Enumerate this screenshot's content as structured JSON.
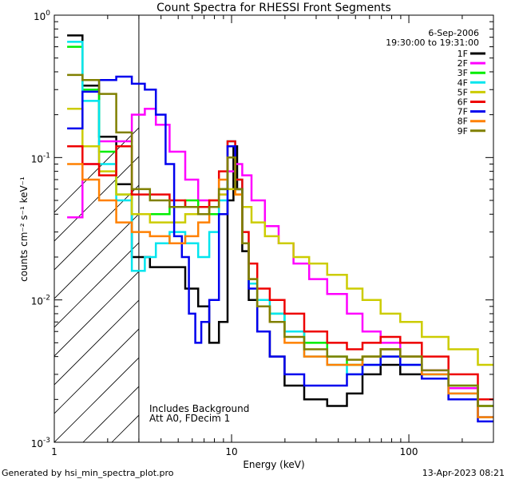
{
  "chart_data": {
    "type": "line",
    "style": "step",
    "title": "Count Spectra for RHESSI Front Segments",
    "xlabel": "Energy (keV)",
    "ylabel": "counts cm⁻² s⁻¹ keV⁻¹",
    "xscale": "log",
    "yscale": "log",
    "xlim": [
      1,
      300
    ],
    "ylim": [
      0.001,
      1
    ],
    "x_ticks": [
      {
        "value": 1,
        "label": "1"
      },
      {
        "value": 10,
        "label": "10"
      },
      {
        "value": 100,
        "label": "100"
      }
    ],
    "y_ticks": [
      {
        "value": 0.001,
        "mantissa": "10",
        "exp": "-3"
      },
      {
        "value": 0.01,
        "mantissa": "10",
        "exp": "-2"
      },
      {
        "value": 0.1,
        "mantissa": "10",
        "exp": "-1"
      },
      {
        "value": 1,
        "mantissa": "10",
        "exp": "0"
      }
    ],
    "hatched_region_xmax": 3,
    "date": "6-Sep-2006",
    "time_range": "19:30:00 to 19:31:00",
    "annotations": [
      "Includes Background",
      "Att A0, FDecim 1"
    ],
    "footer_left": "Generated by hsi_min_spectra_plot.pro",
    "footer_right": "13-Apr-2023 08:21",
    "series": [
      {
        "name": "1F",
        "color": "#000000",
        "points": [
          [
            1.3,
            0.72
          ],
          [
            1.6,
            0.32
          ],
          [
            2.0,
            0.14
          ],
          [
            2.5,
            0.065
          ],
          [
            3.0,
            0.02
          ],
          [
            4.0,
            0.017
          ],
          [
            5.0,
            0.017
          ],
          [
            6.0,
            0.012
          ],
          [
            7.0,
            0.009
          ],
          [
            8.0,
            0.005
          ],
          [
            9.0,
            0.007
          ],
          [
            10.0,
            0.05
          ],
          [
            10.5,
            0.12
          ],
          [
            11.0,
            0.06
          ],
          [
            12.0,
            0.022
          ],
          [
            13.0,
            0.01
          ],
          [
            15.0,
            0.006
          ],
          [
            18.0,
            0.004
          ],
          [
            22.0,
            0.0025
          ],
          [
            30.0,
            0.002
          ],
          [
            40.0,
            0.0018
          ],
          [
            50.0,
            0.0022
          ],
          [
            60.0,
            0.003
          ],
          [
            80.0,
            0.0035
          ],
          [
            100.0,
            0.003
          ],
          [
            140.0,
            0.0028
          ],
          [
            200.0,
            0.002
          ],
          [
            300.0,
            0.0015
          ]
        ]
      },
      {
        "name": "2F",
        "color": "#ff00ff",
        "points": [
          [
            1.3,
            0.038
          ],
          [
            1.6,
            0.09
          ],
          [
            2.0,
            0.13
          ],
          [
            2.5,
            0.13
          ],
          [
            3.0,
            0.2
          ],
          [
            3.5,
            0.22
          ],
          [
            4.0,
            0.17
          ],
          [
            5.0,
            0.11
          ],
          [
            6.0,
            0.07
          ],
          [
            7.0,
            0.05
          ],
          [
            8.0,
            0.045
          ],
          [
            9.0,
            0.055
          ],
          [
            10.0,
            0.08
          ],
          [
            11.0,
            0.09
          ],
          [
            12.0,
            0.075
          ],
          [
            14.0,
            0.05
          ],
          [
            17.0,
            0.033
          ],
          [
            20.0,
            0.025
          ],
          [
            25.0,
            0.018
          ],
          [
            30.0,
            0.014
          ],
          [
            40.0,
            0.011
          ],
          [
            50.0,
            0.008
          ],
          [
            60.0,
            0.006
          ],
          [
            80.0,
            0.005
          ],
          [
            100.0,
            0.004
          ],
          [
            140.0,
            0.0032
          ],
          [
            200.0,
            0.0024
          ],
          [
            300.0,
            0.0015
          ]
        ]
      },
      {
        "name": "3F",
        "color": "#00ee00",
        "points": [
          [
            1.3,
            0.6
          ],
          [
            1.6,
            0.3
          ],
          [
            2.0,
            0.11
          ],
          [
            2.5,
            0.055
          ],
          [
            3.0,
            0.04
          ],
          [
            4.0,
            0.04
          ],
          [
            5.0,
            0.045
          ],
          [
            6.0,
            0.05
          ],
          [
            7.0,
            0.045
          ],
          [
            8.0,
            0.04
          ],
          [
            9.0,
            0.06
          ],
          [
            10.0,
            0.1
          ],
          [
            11.0,
            0.06
          ],
          [
            12.0,
            0.025
          ],
          [
            13.0,
            0.013
          ],
          [
            15.0,
            0.009
          ],
          [
            18.0,
            0.008
          ],
          [
            22.0,
            0.006
          ],
          [
            30.0,
            0.005
          ],
          [
            40.0,
            0.004
          ],
          [
            50.0,
            0.0035
          ],
          [
            60.0,
            0.004
          ],
          [
            80.0,
            0.0045
          ],
          [
            100.0,
            0.004
          ],
          [
            140.0,
            0.003
          ],
          [
            200.0,
            0.0025
          ],
          [
            300.0,
            0.0018
          ]
        ]
      },
      {
        "name": "4F",
        "color": "#00e5ee",
        "points": [
          [
            1.3,
            0.65
          ],
          [
            1.6,
            0.25
          ],
          [
            2.0,
            0.09
          ],
          [
            2.5,
            0.05
          ],
          [
            3.0,
            0.016
          ],
          [
            3.5,
            0.02
          ],
          [
            4.0,
            0.025
          ],
          [
            5.0,
            0.03
          ],
          [
            6.0,
            0.025
          ],
          [
            7.0,
            0.02
          ],
          [
            8.0,
            0.03
          ],
          [
            9.0,
            0.05
          ],
          [
            10.0,
            0.13
          ],
          [
            11.0,
            0.07
          ],
          [
            12.0,
            0.025
          ],
          [
            13.0,
            0.013
          ],
          [
            15.0,
            0.01
          ],
          [
            18.0,
            0.008
          ],
          [
            22.0,
            0.006
          ],
          [
            30.0,
            0.004
          ],
          [
            40.0,
            0.0035
          ],
          [
            50.0,
            0.003
          ],
          [
            60.0,
            0.0035
          ],
          [
            80.0,
            0.004
          ],
          [
            100.0,
            0.0035
          ],
          [
            140.0,
            0.003
          ],
          [
            200.0,
            0.0022
          ],
          [
            300.0,
            0.0015
          ]
        ]
      },
      {
        "name": "5F",
        "color": "#cccc00",
        "points": [
          [
            1.3,
            0.22
          ],
          [
            1.6,
            0.12
          ],
          [
            2.0,
            0.08
          ],
          [
            2.5,
            0.055
          ],
          [
            3.0,
            0.04
          ],
          [
            4.0,
            0.035
          ],
          [
            5.0,
            0.035
          ],
          [
            6.0,
            0.04
          ],
          [
            7.0,
            0.045
          ],
          [
            8.0,
            0.05
          ],
          [
            9.0,
            0.055
          ],
          [
            10.0,
            0.06
          ],
          [
            11.0,
            0.055
          ],
          [
            12.0,
            0.045
          ],
          [
            14.0,
            0.035
          ],
          [
            17.0,
            0.028
          ],
          [
            20.0,
            0.025
          ],
          [
            25.0,
            0.02
          ],
          [
            30.0,
            0.018
          ],
          [
            40.0,
            0.015
          ],
          [
            50.0,
            0.012
          ],
          [
            60.0,
            0.01
          ],
          [
            80.0,
            0.008
          ],
          [
            100.0,
            0.007
          ],
          [
            140.0,
            0.0055
          ],
          [
            200.0,
            0.0045
          ],
          [
            300.0,
            0.0035
          ]
        ]
      },
      {
        "name": "6F",
        "color": "#ee0000",
        "points": [
          [
            1.3,
            0.12
          ],
          [
            1.6,
            0.09
          ],
          [
            2.0,
            0.075
          ],
          [
            2.5,
            0.12
          ],
          [
            3.0,
            0.055
          ],
          [
            4.0,
            0.055
          ],
          [
            5.0,
            0.05
          ],
          [
            6.0,
            0.045
          ],
          [
            7.0,
            0.045
          ],
          [
            8.0,
            0.05
          ],
          [
            9.0,
            0.08
          ],
          [
            10.0,
            0.13
          ],
          [
            11.0,
            0.07
          ],
          [
            12.0,
            0.03
          ],
          [
            13.0,
            0.018
          ],
          [
            15.0,
            0.012
          ],
          [
            18.0,
            0.01
          ],
          [
            22.0,
            0.008
          ],
          [
            30.0,
            0.006
          ],
          [
            40.0,
            0.005
          ],
          [
            50.0,
            0.0045
          ],
          [
            60.0,
            0.005
          ],
          [
            80.0,
            0.0055
          ],
          [
            100.0,
            0.005
          ],
          [
            140.0,
            0.004
          ],
          [
            200.0,
            0.003
          ],
          [
            300.0,
            0.002
          ]
        ]
      },
      {
        "name": "7F",
        "color": "#0000ee",
        "points": [
          [
            1.3,
            0.16
          ],
          [
            1.6,
            0.29
          ],
          [
            2.0,
            0.35
          ],
          [
            2.5,
            0.37
          ],
          [
            3.0,
            0.33
          ],
          [
            3.5,
            0.3
          ],
          [
            4.0,
            0.2
          ],
          [
            4.5,
            0.09
          ],
          [
            5.0,
            0.028
          ],
          [
            5.5,
            0.02
          ],
          [
            6.0,
            0.008
          ],
          [
            6.5,
            0.005
          ],
          [
            7.0,
            0.007
          ],
          [
            8.0,
            0.01
          ],
          [
            9.0,
            0.04
          ],
          [
            10.0,
            0.12
          ],
          [
            11.0,
            0.06
          ],
          [
            12.0,
            0.025
          ],
          [
            13.0,
            0.012
          ],
          [
            15.0,
            0.006
          ],
          [
            18.0,
            0.004
          ],
          [
            22.0,
            0.003
          ],
          [
            30.0,
            0.0025
          ],
          [
            40.0,
            0.0025
          ],
          [
            50.0,
            0.003
          ],
          [
            60.0,
            0.0035
          ],
          [
            80.0,
            0.004
          ],
          [
            100.0,
            0.0035
          ],
          [
            140.0,
            0.0028
          ],
          [
            200.0,
            0.002
          ],
          [
            300.0,
            0.0014
          ]
        ]
      },
      {
        "name": "8F",
        "color": "#ff8000",
        "points": [
          [
            1.3,
            0.09
          ],
          [
            1.6,
            0.07
          ],
          [
            2.0,
            0.05
          ],
          [
            2.5,
            0.035
          ],
          [
            3.0,
            0.03
          ],
          [
            4.0,
            0.028
          ],
          [
            5.0,
            0.025
          ],
          [
            6.0,
            0.028
          ],
          [
            7.0,
            0.035
          ],
          [
            8.0,
            0.045
          ],
          [
            9.0,
            0.07
          ],
          [
            10.0,
            0.1
          ],
          [
            11.0,
            0.055
          ],
          [
            12.0,
            0.025
          ],
          [
            13.0,
            0.014
          ],
          [
            15.0,
            0.009
          ],
          [
            18.0,
            0.007
          ],
          [
            22.0,
            0.005
          ],
          [
            30.0,
            0.004
          ],
          [
            40.0,
            0.0035
          ],
          [
            50.0,
            0.0035
          ],
          [
            60.0,
            0.004
          ],
          [
            80.0,
            0.0045
          ],
          [
            100.0,
            0.004
          ],
          [
            140.0,
            0.003
          ],
          [
            200.0,
            0.0022
          ],
          [
            300.0,
            0.0015
          ]
        ]
      },
      {
        "name": "9F",
        "color": "#808000",
        "points": [
          [
            1.3,
            0.38
          ],
          [
            1.6,
            0.35
          ],
          [
            2.0,
            0.28
          ],
          [
            2.5,
            0.15
          ],
          [
            3.0,
            0.06
          ],
          [
            4.0,
            0.05
          ],
          [
            5.0,
            0.045
          ],
          [
            6.0,
            0.045
          ],
          [
            7.0,
            0.04
          ],
          [
            8.0,
            0.045
          ],
          [
            9.0,
            0.06
          ],
          [
            10.0,
            0.1
          ],
          [
            11.0,
            0.06
          ],
          [
            12.0,
            0.025
          ],
          [
            13.0,
            0.014
          ],
          [
            15.0,
            0.009
          ],
          [
            18.0,
            0.007
          ],
          [
            22.0,
            0.0055
          ],
          [
            30.0,
            0.0045
          ],
          [
            40.0,
            0.004
          ],
          [
            50.0,
            0.0038
          ],
          [
            60.0,
            0.004
          ],
          [
            80.0,
            0.0045
          ],
          [
            100.0,
            0.004
          ],
          [
            140.0,
            0.0032
          ],
          [
            200.0,
            0.0025
          ],
          [
            300.0,
            0.0018
          ]
        ]
      }
    ]
  }
}
